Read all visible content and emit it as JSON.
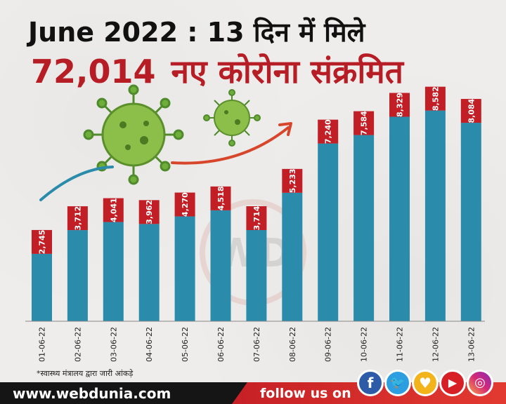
{
  "header": {
    "title_line1": "June 2022 : 13 दिन में मिले",
    "title_line2_number": "72,014",
    "title_line2_text": "नए कोरोना संक्रमित"
  },
  "watermark": "WD",
  "chart_data": {
    "type": "bar",
    "categories": [
      "01-06-22",
      "02-06-22",
      "03-06-22",
      "04-06-22",
      "05-06-22",
      "06-06-22",
      "07-06-22",
      "08-06-22",
      "09-06-22",
      "10-06-22",
      "11-06-22",
      "12-06-22",
      "13-06-22"
    ],
    "values": [
      2745,
      3712,
      4041,
      3962,
      4270,
      4518,
      3714,
      5233,
      7240,
      7584,
      8329,
      8582,
      8084
    ],
    "data_labels": [
      "2,745",
      "3,712",
      "4,041",
      "3,962",
      "4,270",
      "4,518",
      "3,714",
      "5,233",
      "7,240",
      "7,584",
      "8,329",
      "8,582",
      "8,084"
    ],
    "ylim": [
      0,
      9000
    ],
    "bar_color": "#2a8bab",
    "label_color": "#c21e25",
    "grid": false,
    "legend": "none"
  },
  "footnote": "*स्वास्थ्य मंत्रालय द्वारा जारी आंकड़े",
  "footer": {
    "site": "www.webdunia.com",
    "follow_text": "follow us on",
    "social_icons": [
      "facebook-icon",
      "twitter-icon",
      "koo-icon",
      "youtube-icon",
      "instagram-icon"
    ]
  }
}
